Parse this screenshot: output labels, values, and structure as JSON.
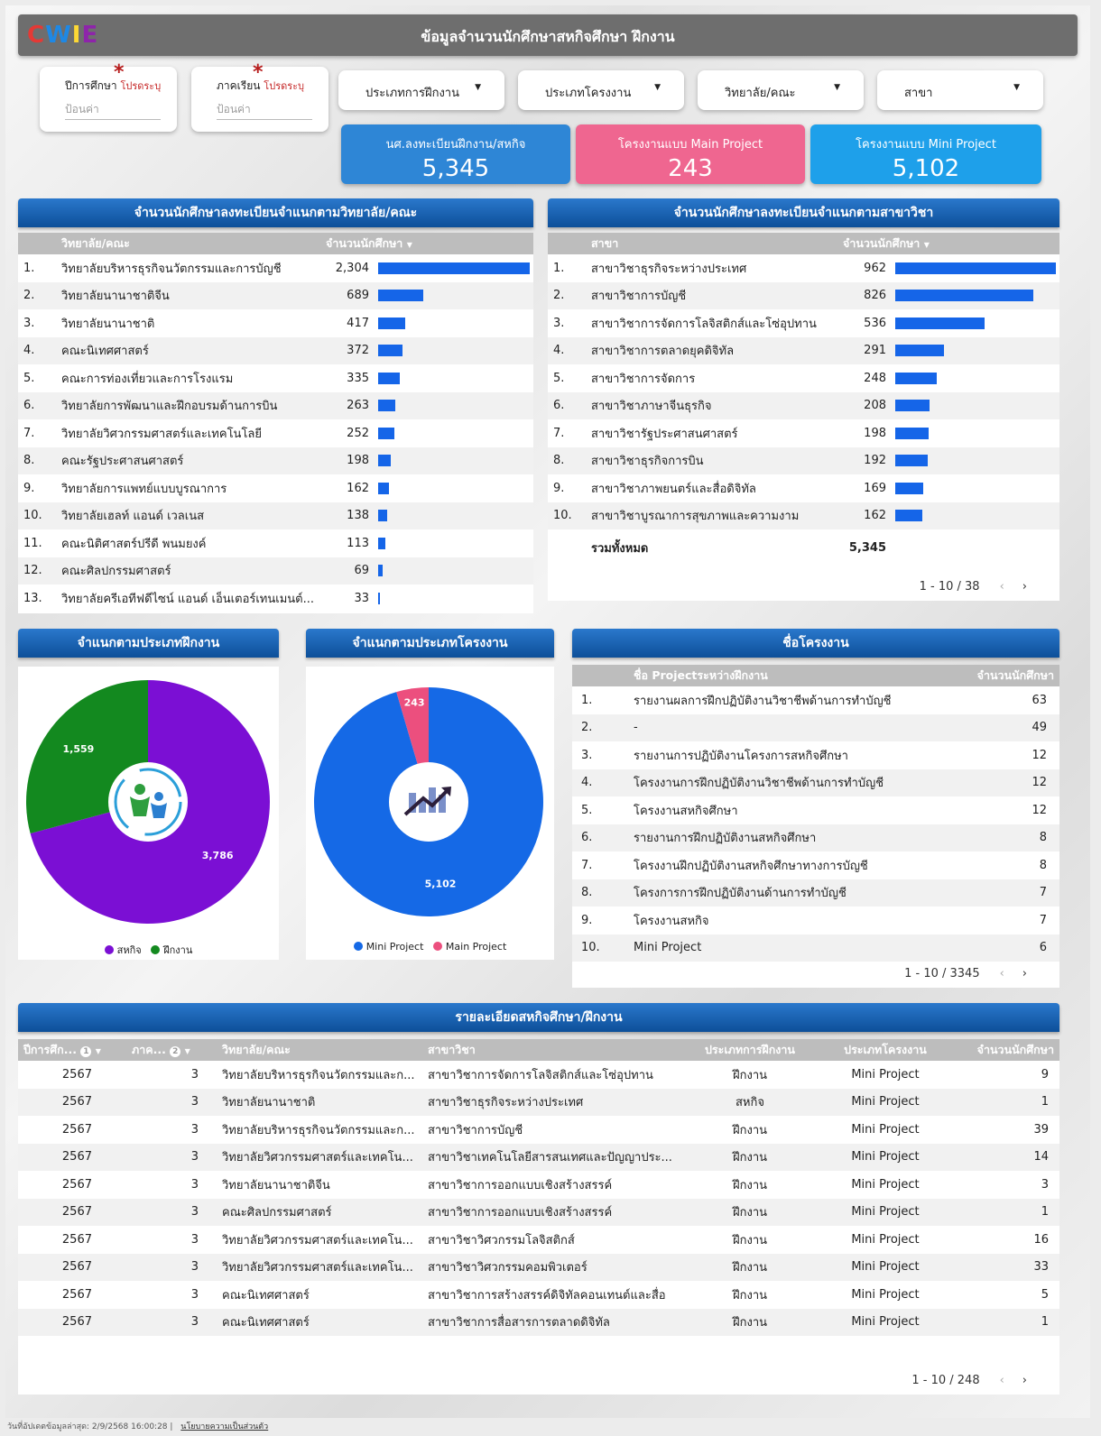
{
  "header": {
    "logo_letters": [
      "C",
      "W",
      "I",
      "E"
    ],
    "title": "ข้อมูลจำนวนนักศึกษาสหกิจศึกษา ฝึกงาน"
  },
  "filters": {
    "year": {
      "label": "ปีการศึกษา",
      "required": "โปรดระบุ",
      "placeholder": "ป้อนค่า"
    },
    "term": {
      "label": "ภาคเรียน",
      "required": "โปรดระบุ",
      "placeholder": "ป้อนค่า"
    },
    "dropdowns": [
      "ประเภทการฝึกงาน",
      "ประเภทโครงงาน",
      "วิทยาลัย/คณะ",
      "สาขา"
    ]
  },
  "kpis": [
    {
      "label": "นศ.ลงทะเบียนฝึกงาน/สหกิจ",
      "value": "5,345",
      "color": "#2e86d6"
    },
    {
      "label": "โครงงานแบบ Main Project",
      "value": "243",
      "color": "#ef6690"
    },
    {
      "label": "โครงงานแบบ Mini Project",
      "value": "5,102",
      "color": "#1ea0ea"
    }
  ],
  "faculty_table": {
    "title": "จำนวนนักศึกษาลงทะเบียนจำแนกตามวิทยาลัย/คณะ",
    "col_name": "วิทยาลัย/คณะ",
    "col_count": "จำนวนนักศึกษา",
    "rows": [
      {
        "rank": "1.",
        "name": "วิทยาลัยบริหารธุรกิจนวัตกรรมและการบัญชี",
        "count": "2,304",
        "value": 2304
      },
      {
        "rank": "2.",
        "name": "วิทยาลัยนานาชาติจีน",
        "count": "689",
        "value": 689
      },
      {
        "rank": "3.",
        "name": "วิทยาลัยนานาชาติ",
        "count": "417",
        "value": 417
      },
      {
        "rank": "4.",
        "name": "คณะนิเทศศาสตร์",
        "count": "372",
        "value": 372
      },
      {
        "rank": "5.",
        "name": "คณะการท่องเที่ยวและการโรงแรม",
        "count": "335",
        "value": 335
      },
      {
        "rank": "6.",
        "name": "วิทยาลัยการพัฒนาและฝึกอบรมด้านการบิน",
        "count": "263",
        "value": 263
      },
      {
        "rank": "7.",
        "name": "วิทยาลัยวิศวกรรมศาสตร์และเทคโนโลยี",
        "count": "252",
        "value": 252
      },
      {
        "rank": "8.",
        "name": "คณะรัฐประศาสนศาสตร์",
        "count": "198",
        "value": 198
      },
      {
        "rank": "9.",
        "name": "วิทยาลัยการแพทย์แบบบูรณาการ",
        "count": "162",
        "value": 162
      },
      {
        "rank": "10.",
        "name": "วิทยาลัยเฮลท์ แอนด์ เวลเนส",
        "count": "138",
        "value": 138
      },
      {
        "rank": "11.",
        "name": "คณะนิติศาสตร์ปรีดี พนมยงค์",
        "count": "113",
        "value": 113
      },
      {
        "rank": "12.",
        "name": "คณะศิลปกรรมศาสตร์",
        "count": "69",
        "value": 69
      },
      {
        "rank": "13.",
        "name": "วิทยาลัยครีเอทีฟดีไซน์ แอนด์ เอ็นเตอร์เทนเมนต์...",
        "count": "33",
        "value": 33
      }
    ]
  },
  "major_table": {
    "title": "จำนวนนักศึกษาลงทะเบียนจำแนกตามสาขาวิชา",
    "col_name": "สาขา",
    "col_count": "จำนวนนักศึกษา",
    "rows": [
      {
        "rank": "1.",
        "name": "สาขาวิชาธุรกิจระหว่างประเทศ",
        "count": "962",
        "value": 962
      },
      {
        "rank": "2.",
        "name": "สาขาวิชาการบัญชี",
        "count": "826",
        "value": 826
      },
      {
        "rank": "3.",
        "name": "สาขาวิชาการจัดการโลจิสติกส์และโซ่อุปทาน",
        "count": "536",
        "value": 536
      },
      {
        "rank": "4.",
        "name": "สาขาวิชาการตลาดยุคดิจิทัล",
        "count": "291",
        "value": 291
      },
      {
        "rank": "5.",
        "name": "สาขาวิชาการจัดการ",
        "count": "248",
        "value": 248
      },
      {
        "rank": "6.",
        "name": "สาขาวิชาภาษาจีนธุรกิจ",
        "count": "208",
        "value": 208
      },
      {
        "rank": "7.",
        "name": "สาขาวิชารัฐประศาสนศาสตร์",
        "count": "198",
        "value": 198
      },
      {
        "rank": "8.",
        "name": "สาขาวิชาธุรกิจการบิน",
        "count": "192",
        "value": 192
      },
      {
        "rank": "9.",
        "name": "สาขาวิชาภาพยนตร์และสื่อดิจิทัล",
        "count": "169",
        "value": 169
      },
      {
        "rank": "10.",
        "name": "สาขาวิชาบูรณาการสุขภาพและความงาม",
        "count": "162",
        "value": 162
      }
    ],
    "total_label": "รวมทั้งหมด",
    "total_value": "5,345",
    "pager": "1 - 10 / 38"
  },
  "pie_training": {
    "title": "จำแนกตามประเภทฝึกงาน",
    "slices": [
      {
        "name": "สหกิจ",
        "value": 3786,
        "label": "3,786",
        "color": "#7b0fd4"
      },
      {
        "name": "ฝึกงาน",
        "value": 1559,
        "label": "1,559",
        "color": "#13891f"
      }
    ]
  },
  "pie_project": {
    "title": "จำแนกตามประเภทโครงงาน",
    "slices": [
      {
        "name": "Mini Project",
        "value": 5102,
        "label": "5,102",
        "color": "#1569e6"
      },
      {
        "name": "Main Project",
        "value": 243,
        "label": "243",
        "color": "#ec4f7e"
      }
    ]
  },
  "project_table": {
    "title": "ชื่อโครงงาน",
    "col_name": "ชื่อ Projectระหว่างฝึกงาน",
    "col_count": "จำนวนนักศึกษา",
    "rows": [
      {
        "rank": "1.",
        "name": "รายงานผลการฝึกปฏิบัติงานวิชาชีพด้านการทำบัญชี",
        "count": "63"
      },
      {
        "rank": "2.",
        "name": "-",
        "count": "49"
      },
      {
        "rank": "3.",
        "name": "รายงานการปฏิบัติงานโครงการสหกิจศึกษา",
        "count": "12"
      },
      {
        "rank": "4.",
        "name": "โครงงานการฝึกปฏิบัติงานวิชาชีพด้านการทำบัญชี",
        "count": "12"
      },
      {
        "rank": "5.",
        "name": "โครงงานสหกิจศึกษา",
        "count": "12"
      },
      {
        "rank": "6.",
        "name": "รายงานการฝึกปฏิบัติงานสหกิจศึกษา",
        "count": "8"
      },
      {
        "rank": "7.",
        "name": "โครงงานฝึกปฏิบัติงานสหกิจศึกษาทางการบัญชี",
        "count": "8"
      },
      {
        "rank": "8.",
        "name": "โครงการการฝึกปฏิบัติงานด้านการทำบัญชี",
        "count": "7"
      },
      {
        "rank": "9.",
        "name": "โครงงานสหกิจ",
        "count": "7"
      },
      {
        "rank": "10.",
        "name": "Mini Project",
        "count": "6"
      }
    ],
    "pager": "1 - 10 / 3345"
  },
  "detail_table": {
    "title": "รายละเอียดสหกิจศึกษา/ฝึกงาน",
    "headers": [
      "ปีการศึก...",
      "ภาค...",
      "วิทยาลัย/คณะ",
      "สาขาวิชา",
      "ประเภทการฝึกงาน",
      "ประเภทโครงงาน",
      "จำนวนนักศึกษา"
    ],
    "rows": [
      [
        "2567",
        "3",
        "วิทยาลัยบริหารธุรกิจนวัตกรรมและก...",
        "สาขาวิชาการจัดการโลจิสติกส์และโซ่อุปทาน",
        "ฝึกงาน",
        "Mini Project",
        "9"
      ],
      [
        "2567",
        "3",
        "วิทยาลัยนานาชาติ",
        "สาขาวิชาธุรกิจระหว่างประเทศ",
        "สหกิจ",
        "Mini Project",
        "1"
      ],
      [
        "2567",
        "3",
        "วิทยาลัยบริหารธุรกิจนวัตกรรมและก...",
        "สาขาวิชาการบัญชี",
        "ฝึกงาน",
        "Mini Project",
        "39"
      ],
      [
        "2567",
        "3",
        "วิทยาลัยวิศวกรรมศาสตร์และเทคโน...",
        "สาขาวิชาเทคโนโลยีสารสนเทศและปัญญาประ...",
        "ฝึกงาน",
        "Mini Project",
        "14"
      ],
      [
        "2567",
        "3",
        "วิทยาลัยนานาชาติจีน",
        "สาขาวิชาการออกแบบเชิงสร้างสรรค์",
        "ฝึกงาน",
        "Mini Project",
        "3"
      ],
      [
        "2567",
        "3",
        "คณะศิลปกรรมศาสตร์",
        "สาขาวิชาการออกแบบเชิงสร้างสรรค์",
        "ฝึกงาน",
        "Mini Project",
        "1"
      ],
      [
        "2567",
        "3",
        "วิทยาลัยวิศวกรรมศาสตร์และเทคโน...",
        "สาขาวิชาวิศวกรรมโลจิสติกส์",
        "ฝึกงาน",
        "Mini Project",
        "16"
      ],
      [
        "2567",
        "3",
        "วิทยาลัยวิศวกรรมศาสตร์และเทคโน...",
        "สาขาวิชาวิศวกรรมคอมพิวเตอร์",
        "ฝึกงาน",
        "Mini Project",
        "33"
      ],
      [
        "2567",
        "3",
        "คณะนิเทศศาสตร์",
        "สาขาวิชาการสร้างสรรค์ดิจิทัลคอนเทนต์และสื่อ",
        "ฝึกงาน",
        "Mini Project",
        "5"
      ],
      [
        "2567",
        "3",
        "คณะนิเทศศาสตร์",
        "สาขาวิชาการสื่อสารการตลาดดิจิทัล",
        "ฝึกงาน",
        "Mini Project",
        "1"
      ]
    ],
    "pager": "1 - 10 / 248"
  },
  "footer": {
    "updated": "วันที่อัปเดตข้อมูลล่าสุด: 2/9/2568 16:00:28",
    "privacy": "นโยบายความเป็นส่วนตัว"
  }
}
